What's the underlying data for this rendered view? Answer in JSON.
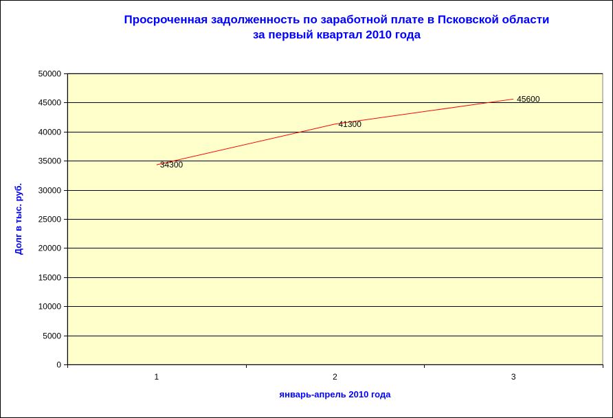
{
  "chart_data": {
    "type": "line",
    "title": [
      "Просроченная задолженность по заработной плате в Псковской области",
      "за первый квартал 2010 года"
    ],
    "xlabel": "январь-апрель 2010 года",
    "ylabel": "Долг в тыс. руб.",
    "categories": [
      "1",
      "2",
      "3"
    ],
    "series": [
      {
        "values": [
          34300,
          41300,
          45600
        ],
        "color": "#ff0000"
      }
    ],
    "data_labels": [
      "34300",
      "41300",
      "45600"
    ],
    "ylim": [
      0,
      50000
    ],
    "yticks": [
      "0",
      "5000",
      "10000",
      "15000",
      "20000",
      "25000",
      "30000",
      "35000",
      "40000",
      "45000",
      "50000"
    ],
    "grid": true,
    "legend": "none",
    "plot_background": "#ffffcc",
    "title_color": "#0000ff"
  }
}
